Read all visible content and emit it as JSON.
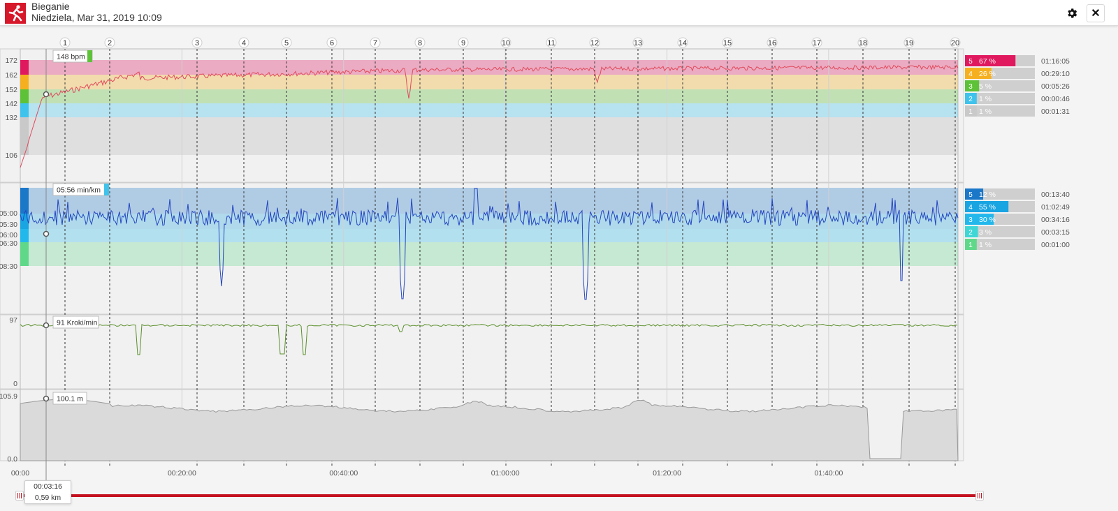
{
  "header": {
    "title": "Bieganie",
    "subtitle": "Niedziela, Mar 31, 2019 10:09",
    "app_icon": "running-person-icon",
    "settings_icon": "gear-icon",
    "close_label": "✕"
  },
  "colors": {
    "zone5_hr": "#e0195f",
    "zone4_hr": "#f6b01f",
    "zone3_hr": "#5ec238",
    "zone2_hr": "#3fc3ec",
    "zone1_hr": "#c9c9c9",
    "zone5_pace": "#1b78c9",
    "zone4_pace": "#19a4e2",
    "zone3_pace": "#23b8ec",
    "zone2_pace": "#3fd6d6",
    "zone1_pace": "#5fd88a",
    "hr_line": "#e04a5c",
    "pace_line": "#2446c0",
    "cadence_line": "#5a8f2a",
    "elevation_line": "#999999",
    "timeline_bar": "#c4101f"
  },
  "laps": [
    "1",
    "2",
    "3",
    "4",
    "5",
    "6",
    "7",
    "8",
    "9",
    "10",
    "11",
    "12",
    "13",
    "14",
    "15",
    "16",
    "17",
    "18",
    "19",
    "20"
  ],
  "x_axis": {
    "start_label": "00:00",
    "ticks": [
      "00:20:00",
      "00:40:00",
      "01:00:00",
      "01:20:00",
      "01:40:00"
    ],
    "total_seconds": 6960
  },
  "cursor": {
    "time": "00:03:16",
    "distance": "0,59 km",
    "hr": "148 bpm",
    "pace": "05:56 min/km",
    "cadence": "91 Kroki/min",
    "elevation": "100.1 m"
  },
  "hr_panel": {
    "y_ticks": [
      "172",
      "162",
      "152",
      "142",
      "132",
      "106"
    ],
    "zones": [
      {
        "num": "5",
        "pct": "67 %",
        "pct_value": 67,
        "time": "01:16:05"
      },
      {
        "num": "4",
        "pct": "26 %",
        "pct_value": 26,
        "time": "00:29:10"
      },
      {
        "num": "3",
        "pct": "5 %",
        "pct_value": 5,
        "time": "00:05:26"
      },
      {
        "num": "2",
        "pct": "1 %",
        "pct_value": 1,
        "time": "00:00:46"
      },
      {
        "num": "1",
        "pct": "1 %",
        "pct_value": 1,
        "time": "00:01:31"
      }
    ]
  },
  "pace_panel": {
    "y_ticks": [
      "05:00",
      "05:30",
      "06:00",
      "06:30",
      "08:30"
    ],
    "zones": [
      {
        "num": "5",
        "pct": "12 %",
        "pct_value": 12,
        "time": "00:13:40"
      },
      {
        "num": "4",
        "pct": "55 %",
        "pct_value": 55,
        "time": "01:02:49"
      },
      {
        "num": "3",
        "pct": "30 %",
        "pct_value": 30,
        "time": "00:34:16"
      },
      {
        "num": "2",
        "pct": "3 %",
        "pct_value": 3,
        "time": "00:03:15"
      },
      {
        "num": "1",
        "pct": "1 %",
        "pct_value": 1,
        "time": "00:01:00"
      }
    ]
  },
  "cadence_panel": {
    "y_ticks": [
      "97",
      "0"
    ]
  },
  "elevation_panel": {
    "y_ticks": [
      "105.9",
      "0.0"
    ]
  }
}
